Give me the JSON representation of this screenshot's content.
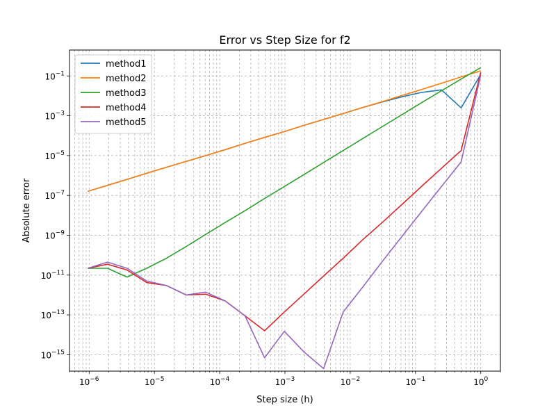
{
  "chart_data": {
    "type": "line",
    "title": "Error vs Step Size for f2",
    "xlabel": "Step size (h)",
    "ylabel": "Absolute error",
    "x_scale": "log",
    "y_scale": "log",
    "xlim": [
      5e-07,
      2
    ],
    "ylim": [
      1.5e-16,
      2
    ],
    "grid": true,
    "legend_position": "top-left",
    "x_ticks": [
      {
        "value": 1e-06,
        "base": "10",
        "exp": "−6"
      },
      {
        "value": 1e-05,
        "base": "10",
        "exp": "−5"
      },
      {
        "value": 0.0001,
        "base": "10",
        "exp": "−4"
      },
      {
        "value": 0.001,
        "base": "10",
        "exp": "−3"
      },
      {
        "value": 0.01,
        "base": "10",
        "exp": "−2"
      },
      {
        "value": 0.1,
        "base": "10",
        "exp": "−1"
      },
      {
        "value": 1,
        "base": "10",
        "exp": "0"
      }
    ],
    "y_ticks": [
      {
        "value": 1e-15,
        "base": "10",
        "exp": "−15"
      },
      {
        "value": 1e-13,
        "base": "10",
        "exp": "−13"
      },
      {
        "value": 1e-11,
        "base": "10",
        "exp": "−11"
      },
      {
        "value": 1e-09,
        "base": "10",
        "exp": "−9"
      },
      {
        "value": 1e-07,
        "base": "10",
        "exp": "−7"
      },
      {
        "value": 1e-05,
        "base": "10",
        "exp": "−5"
      },
      {
        "value": 0.001,
        "base": "10",
        "exp": "−3"
      },
      {
        "value": 0.1,
        "base": "10",
        "exp": "−1"
      }
    ],
    "x": [
      9.54e-07,
      1.91e-06,
      3.81e-06,
      7.63e-06,
      1.53e-05,
      3.05e-05,
      6.1e-05,
      0.000122,
      0.000244,
      0.000488,
      0.000977,
      0.00195,
      0.00391,
      0.00781,
      0.0156,
      0.0313,
      0.0625,
      0.125,
      0.25,
      0.5,
      1
    ],
    "series": [
      {
        "name": "method1",
        "color": "#1f77b4",
        "values": [
          1.6e-07,
          3.2e-07,
          6.4e-07,
          1.3e-06,
          2.6e-06,
          5.1e-06,
          1e-05,
          2e-05,
          4.1e-05,
          8.2e-05,
          0.00016,
          0.00033,
          0.00065,
          0.0013,
          0.0026,
          0.005,
          0.009,
          0.015,
          0.02,
          0.0025,
          0.12
        ]
      },
      {
        "name": "method2",
        "color": "#ff7f0e",
        "values": [
          1.6e-07,
          3.2e-07,
          6.4e-07,
          1.3e-06,
          2.6e-06,
          5.1e-06,
          1e-05,
          2e-05,
          4.1e-05,
          8.2e-05,
          0.00016,
          0.00033,
          0.00065,
          0.0013,
          0.0026,
          0.0052,
          0.0105,
          0.021,
          0.043,
          0.09,
          0.18
        ]
      },
      {
        "name": "method3",
        "color": "#2ca02c",
        "values": [
          2.2e-11,
          2.2e-11,
          8e-12,
          2.2e-11,
          7e-11,
          2.7e-10,
          1.1e-09,
          4.4e-09,
          1.7e-08,
          7e-08,
          2.8e-07,
          1.1e-06,
          4.5e-06,
          1.8e-05,
          7.2e-05,
          0.00029,
          0.00115,
          0.0046,
          0.018,
          0.07,
          0.26
        ]
      },
      {
        "name": "method4",
        "color": "#d62728",
        "values": [
          2.2e-11,
          3.5e-11,
          1.8e-11,
          4.2e-12,
          3e-12,
          1e-12,
          1.1e-12,
          5e-13,
          9e-14,
          1.6e-14,
          1.4e-13,
          1.1e-12,
          9e-12,
          7e-11,
          6e-10,
          4.5e-09,
          3.6e-08,
          2.9e-07,
          2.3e-06,
          1.8e-05,
          0.15
        ]
      },
      {
        "name": "method5",
        "color": "#9467bd",
        "values": [
          2.2e-11,
          4.5e-11,
          2.2e-11,
          5e-12,
          3e-12,
          1e-12,
          1.4e-12,
          5e-13,
          9e-14,
          7e-16,
          1.5e-14,
          1.4e-15,
          2e-16,
          1.4e-13,
          2.5e-12,
          5e-11,
          9e-10,
          1.6e-08,
          2.8e-07,
          4.8e-06,
          0.11
        ]
      }
    ]
  }
}
